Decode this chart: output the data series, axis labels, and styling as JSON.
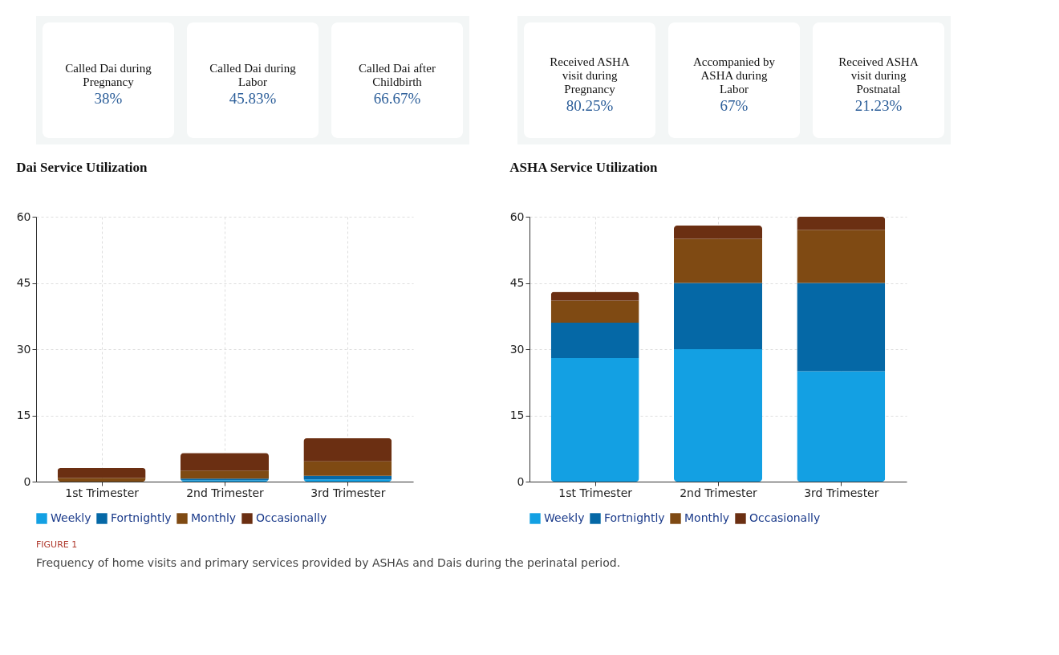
{
  "chart_data": [
    {
      "type": "other",
      "annotations": [
        "Called Dai during Pregnancy",
        "38%",
        "Called Dai during Labor",
        "45.83%",
        "Called Dai after Childbirth",
        "66.67%"
      ]
    },
    {
      "type": "other",
      "annotations": [
        "Received ASHA visit during Pregnancy",
        "80.25%",
        "Accompanied by ASHA during Labor",
        "67%",
        "Received ASHA visit during Postnatal",
        "21.23%"
      ]
    },
    {
      "type": "bar",
      "title": "Dai Service Utilization",
      "stacked": true,
      "categories": [
        "1st Trimester",
        "2nd Trimester",
        "3rd Trimester"
      ],
      "series": [
        {
          "name": "Weekly",
          "color": "#13a0e3",
          "values": [
            0,
            0.3,
            0.5
          ]
        },
        {
          "name": "Fortnightly",
          "color": "#0568a6",
          "values": [
            0,
            0.4,
            0.8
          ]
        },
        {
          "name": "Monthly",
          "color": "#7f4a13",
          "values": [
            0.8,
            1.8,
            3.3
          ]
        },
        {
          "name": "Occasionally",
          "color": "#6b2f12",
          "values": [
            2.3,
            4.0,
            5.2
          ]
        }
      ],
      "ylim": [
        0,
        60
      ],
      "yticks": [
        0,
        15,
        30,
        45,
        60
      ],
      "grid": true,
      "legend": "bottom left"
    },
    {
      "type": "bar",
      "title": "ASHA Service Utilization",
      "stacked": true,
      "categories": [
        "1st Trimester",
        "2nd Trimester",
        "3rd Trimester"
      ],
      "series": [
        {
          "name": "Weekly",
          "color": "#13a0e3",
          "values": [
            28,
            30,
            25
          ]
        },
        {
          "name": "Fortnightly",
          "color": "#0568a6",
          "values": [
            8,
            15,
            20
          ]
        },
        {
          "name": "Monthly",
          "color": "#7f4a13",
          "values": [
            5,
            10,
            12
          ]
        },
        {
          "name": "Occasionally",
          "color": "#6b2f12",
          "values": [
            2,
            3,
            3
          ]
        }
      ],
      "ylim": [
        0,
        60
      ],
      "yticks": [
        0,
        15,
        30,
        45,
        60
      ],
      "grid": true,
      "legend": "bottom left",
      "annotations": [
        "FIGURE 1",
        "Frequency of home visits and primary services provided by ASHAs and Dais during the perinatal period."
      ]
    }
  ]
}
